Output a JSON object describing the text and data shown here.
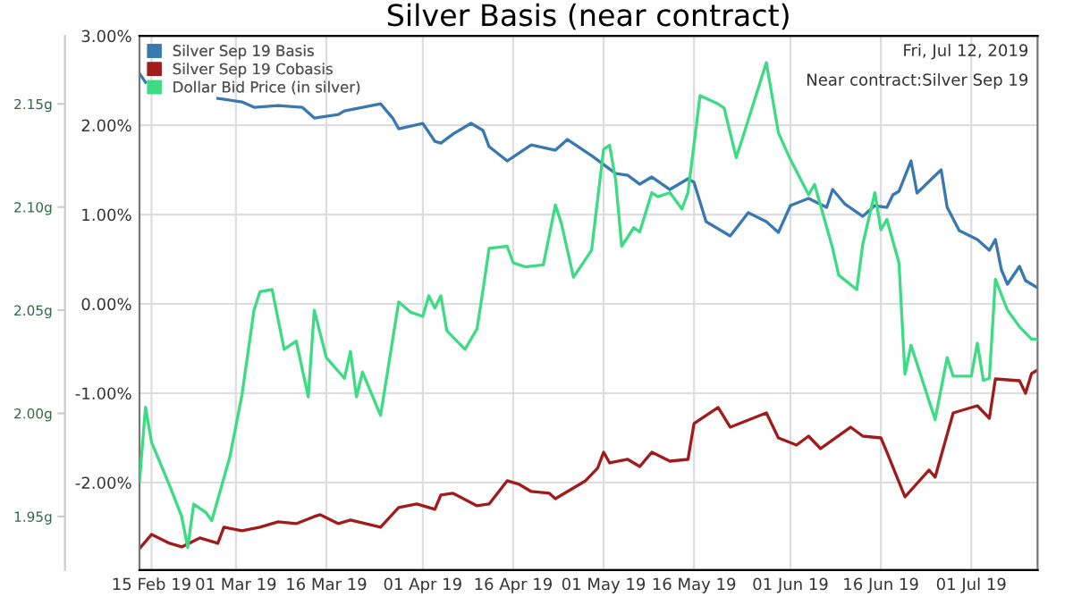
{
  "chart_data": {
    "type": "line",
    "title": "Silver Basis (near contract)",
    "annotations": [
      "Fri, Jul 12, 2019",
      "Near contract:Silver Sep 19"
    ],
    "xlim": [
      "2019-02-13",
      "2019-07-12"
    ],
    "xticks": [
      {
        "value": "2019-02-15",
        "label": "15 Feb 19"
      },
      {
        "value": "2019-03-01",
        "label": "01 Mar 19"
      },
      {
        "value": "2019-03-16",
        "label": "16 Mar 19"
      },
      {
        "value": "2019-04-01",
        "label": "01 Apr 19"
      },
      {
        "value": "2019-04-16",
        "label": "16 Apr 19"
      },
      {
        "value": "2019-05-01",
        "label": "01 May 19"
      },
      {
        "value": "2019-05-16",
        "label": "16 May 19"
      },
      {
        "value": "2019-06-01",
        "label": "01 Jun 19"
      },
      {
        "value": "2019-06-16",
        "label": "16 Jun 19"
      },
      {
        "value": "2019-07-01",
        "label": "01 Jul 19"
      }
    ],
    "ylim": [
      -2.98,
      3.0
    ],
    "yticks": [
      {
        "value": 3,
        "label": "3.00%"
      },
      {
        "value": 2,
        "label": "2.00%"
      },
      {
        "value": 1,
        "label": "1.00%"
      },
      {
        "value": 0,
        "label": "0.00%"
      },
      {
        "value": -1,
        "label": "-1.00%"
      },
      {
        "value": -2,
        "label": "-2.00%"
      }
    ],
    "y2lim": [
      1.924,
      2.183
    ],
    "y2ticks": [
      {
        "value": 2.15,
        "label": "2.15g"
      },
      {
        "value": 2.1,
        "label": "2.10g"
      },
      {
        "value": 2.05,
        "label": "2.05g"
      },
      {
        "value": 2.0,
        "label": "2.00g"
      },
      {
        "value": 1.95,
        "label": "1.95g"
      }
    ],
    "grid": true,
    "legend": "top left",
    "marker": "none",
    "line_style": "solid",
    "series": [
      {
        "name": "Silver Sep 19 Basis",
        "color": "#3a78b0",
        "x": [
          "2019-02-13",
          "2019-02-14",
          "2019-02-20",
          "2019-02-26",
          "2019-03-02",
          "2019-03-04",
          "2019-03-08",
          "2019-03-12",
          "2019-03-14",
          "2019-03-18",
          "2019-03-19",
          "2019-03-25",
          "2019-03-27",
          "2019-03-28",
          "2019-04-01",
          "2019-04-03",
          "2019-04-04",
          "2019-04-06",
          "2019-04-09",
          "2019-04-11",
          "2019-04-12",
          "2019-04-15",
          "2019-04-19",
          "2019-04-23",
          "2019-04-25",
          "2019-04-29",
          "2019-05-03",
          "2019-05-05",
          "2019-05-07",
          "2019-05-09",
          "2019-05-12",
          "2019-05-15",
          "2019-05-16",
          "2019-05-18",
          "2019-05-22",
          "2019-05-25",
          "2019-05-28",
          "2019-05-30",
          "2019-06-01",
          "2019-06-04",
          "2019-06-07",
          "2019-06-08",
          "2019-06-10",
          "2019-06-13",
          "2019-06-15",
          "2019-06-17",
          "2019-06-18",
          "2019-06-19",
          "2019-06-21",
          "2019-06-22",
          "2019-06-26",
          "2019-06-27",
          "2019-06-29",
          "2019-07-02",
          "2019-07-04",
          "2019-07-05",
          "2019-07-06",
          "2019-07-07",
          "2019-07-09",
          "2019-07-10",
          "2019-07-11",
          "2019-07-12"
        ],
        "values": [
          2.58,
          2.48,
          null,
          2.3,
          2.26,
          2.2,
          2.22,
          2.2,
          2.08,
          2.12,
          2.16,
          2.24,
          2.08,
          1.96,
          2.02,
          1.82,
          1.8,
          1.9,
          2.02,
          1.94,
          1.76,
          1.6,
          1.78,
          1.72,
          1.84,
          1.66,
          1.46,
          1.44,
          1.34,
          1.42,
          1.28,
          1.4,
          1.36,
          0.92,
          0.76,
          1.02,
          0.92,
          0.8,
          1.1,
          1.18,
          1.08,
          1.28,
          1.12,
          0.98,
          1.1,
          1.08,
          1.22,
          1.26,
          1.6,
          1.24,
          1.5,
          1.08,
          0.82,
          0.72,
          0.6,
          0.72,
          0.38,
          0.22,
          0.42,
          0.26,
          0.22,
          0.18
        ]
      },
      {
        "name": "Silver Sep 19 Cobasis",
        "color": "#a01c1c",
        "x": [
          "2019-02-13",
          "2019-02-15",
          "2019-02-18",
          "2019-02-20",
          "2019-02-23",
          "2019-02-26",
          "2019-02-27",
          "2019-03-02",
          "2019-03-05",
          "2019-03-08",
          "2019-03-11",
          "2019-03-14",
          "2019-03-15",
          "2019-03-18",
          "2019-03-20",
          "2019-03-25",
          "2019-03-28",
          "2019-03-31",
          "2019-04-03",
          "2019-04-04",
          "2019-04-06",
          "2019-04-10",
          "2019-04-12",
          "2019-04-15",
          "2019-04-17",
          "2019-04-19",
          "2019-04-22",
          "2019-04-23",
          "2019-04-25",
          "2019-04-28",
          "2019-04-30",
          "2019-05-01",
          "2019-05-02",
          "2019-05-05",
          "2019-05-07",
          "2019-05-09",
          "2019-05-12",
          "2019-05-15",
          "2019-05-16",
          "2019-05-20",
          "2019-05-22",
          "2019-05-28",
          "2019-05-30",
          "2019-06-02",
          "2019-06-04",
          "2019-06-06",
          "2019-06-11",
          "2019-06-13",
          "2019-06-16",
          "2019-06-17",
          "2019-06-20",
          "2019-06-24",
          "2019-06-25",
          "2019-06-28",
          "2019-07-02",
          "2019-07-04",
          "2019-07-05",
          "2019-07-09",
          "2019-07-10",
          "2019-07-11",
          "2019-07-12"
        ],
        "values": [
          -2.74,
          -2.58,
          -2.68,
          -2.72,
          -2.62,
          -2.68,
          -2.5,
          -2.54,
          -2.5,
          -2.44,
          -2.46,
          -2.38,
          -2.36,
          -2.46,
          -2.42,
          -2.5,
          -2.28,
          -2.24,
          -2.3,
          -2.14,
          -2.12,
          -2.26,
          -2.24,
          -1.98,
          -2.02,
          -2.1,
          -2.12,
          -2.18,
          -2.1,
          -1.98,
          -1.84,
          -1.66,
          -1.78,
          -1.74,
          -1.82,
          -1.66,
          -1.76,
          -1.74,
          -1.34,
          -1.16,
          -1.38,
          -1.22,
          -1.5,
          -1.58,
          -1.48,
          -1.62,
          -1.38,
          -1.48,
          -1.5,
          -1.66,
          -2.16,
          -1.86,
          -1.94,
          -1.22,
          -1.14,
          -1.28,
          -0.84,
          -0.86,
          -1.0,
          -0.78,
          -0.74
        ]
      },
      {
        "name": "Dollar Bid Price (in silver)",
        "color": "#3ddc84",
        "axis": "y2",
        "x": [
          "2019-02-13",
          "2019-02-14",
          "2019-02-15",
          "2019-02-18",
          "2019-02-20",
          "2019-02-21",
          "2019-02-22",
          "2019-02-24",
          "2019-02-25",
          "2019-02-28",
          "2019-03-02",
          "2019-03-04",
          "2019-03-05",
          "2019-03-07",
          "2019-03-09",
          "2019-03-11",
          "2019-03-13",
          "2019-03-14",
          "2019-03-16",
          "2019-03-19",
          "2019-03-20",
          "2019-03-21",
          "2019-03-22",
          "2019-03-25",
          "2019-03-28",
          "2019-03-30",
          "2019-04-01",
          "2019-04-02",
          "2019-04-03",
          "2019-04-04",
          "2019-04-05",
          "2019-04-08",
          "2019-04-10",
          "2019-04-11",
          "2019-04-12",
          "2019-04-15",
          "2019-04-16",
          "2019-04-18",
          "2019-04-21",
          "2019-04-23",
          "2019-04-24",
          "2019-04-26",
          "2019-04-29",
          "2019-05-01",
          "2019-05-02",
          "2019-05-03",
          "2019-05-04",
          "2019-05-06",
          "2019-05-07",
          "2019-05-09",
          "2019-05-10",
          "2019-05-12",
          "2019-05-14",
          "2019-05-15",
          "2019-05-17",
          "2019-05-20",
          "2019-05-21",
          "2019-05-23",
          "2019-05-24",
          "2019-05-28",
          "2019-05-30",
          "2019-06-01",
          "2019-06-04",
          "2019-06-05",
          "2019-06-08",
          "2019-06-09",
          "2019-06-12",
          "2019-06-13",
          "2019-06-15",
          "2019-06-16",
          "2019-06-17",
          "2019-06-19",
          "2019-06-20",
          "2019-06-21",
          "2019-06-25",
          "2019-06-27",
          "2019-06-28",
          "2019-07-01",
          "2019-07-02",
          "2019-07-03",
          "2019-07-04",
          "2019-07-05",
          "2019-07-07",
          "2019-07-09",
          "2019-07-11",
          "2019-07-12"
        ],
        "values": [
          1.967,
          2.003,
          1.986,
          1.965,
          1.95,
          1.935,
          1.956,
          1.952,
          1.948,
          1.979,
          2.009,
          2.05,
          2.059,
          2.06,
          2.031,
          2.035,
          2.008,
          2.05,
          2.027,
          2.017,
          2.03,
          2.008,
          2.02,
          1.999,
          2.054,
          2.049,
          2.047,
          2.057,
          2.051,
          2.057,
          2.04,
          2.031,
          2.041,
          2.06,
          2.08,
          2.081,
          2.073,
          2.071,
          2.072,
          2.101,
          2.092,
          2.066,
          2.079,
          2.128,
          2.13,
          2.113,
          2.081,
          2.09,
          2.088,
          2.107,
          2.105,
          2.107,
          2.099,
          2.107,
          2.154,
          2.15,
          2.148,
          2.124,
          2.133,
          2.17,
          2.136,
          2.123,
          2.106,
          2.111,
          2.08,
          2.067,
          2.06,
          2.082,
          2.107,
          2.089,
          2.094,
          2.073,
          2.019,
          2.033,
          1.997,
          2.027,
          2.018,
          2.018,
          2.034,
          2.016,
          2.017,
          2.065,
          2.05,
          2.042,
          2.036,
          2.036
        ]
      }
    ]
  }
}
